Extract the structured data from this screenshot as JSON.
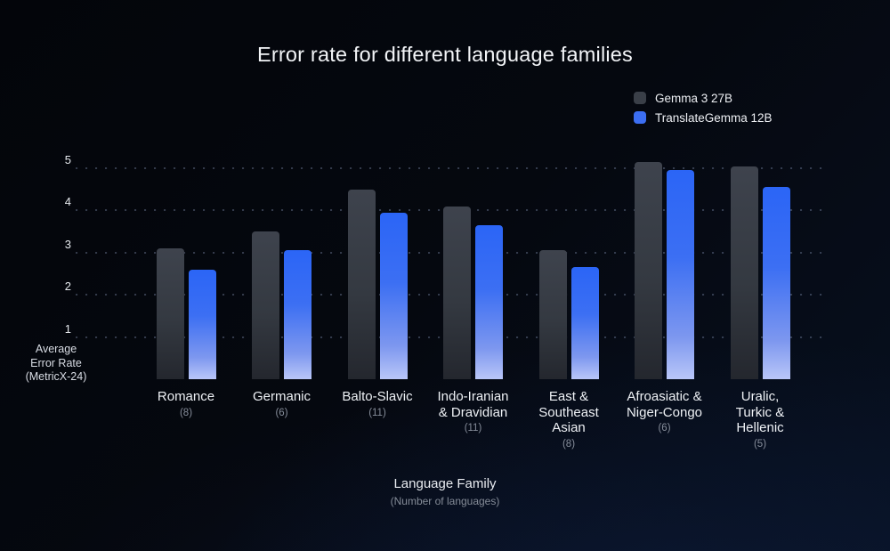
{
  "title": "Error rate for different language families",
  "chart_data": {
    "type": "bar",
    "title": "Error rate for different language families",
    "xlabel": "Language Family",
    "xlabel_sub": "(Number of languages)",
    "ylabel_lines": [
      "Average",
      "Error Rate",
      "(MetricX-24)"
    ],
    "yticks": [
      1,
      2,
      3,
      4,
      5
    ],
    "ylim": [
      0,
      5.5
    ],
    "grid": "dotted-horizontal",
    "legend_position": "top-right",
    "categories": [
      {
        "lines": [
          "Romance"
        ],
        "count": "(8)"
      },
      {
        "lines": [
          "Germanic"
        ],
        "count": "(6)"
      },
      {
        "lines": [
          "Balto-Slavic"
        ],
        "count": "(11)"
      },
      {
        "lines": [
          "Indo-Iranian",
          "& Dravidian"
        ],
        "count": "(11)"
      },
      {
        "lines": [
          "East &",
          "Southeast",
          "Asian"
        ],
        "count": "(8)"
      },
      {
        "lines": [
          "Afroasiatic &",
          "Niger-Congo"
        ],
        "count": "(6)"
      },
      {
        "lines": [
          "Uralic,",
          "Turkic &",
          "Hellenic"
        ],
        "count": "(5)"
      }
    ],
    "series": [
      {
        "name": "Gemma 3 27B",
        "color": "#3a3f48",
        "values": [
          3.1,
          3.5,
          4.5,
          4.1,
          3.05,
          5.15,
          5.05
        ]
      },
      {
        "name": "TranslateGemma 12B",
        "color": "#3c6ef2",
        "values": [
          2.6,
          3.05,
          3.95,
          3.65,
          2.65,
          4.95,
          4.55
        ]
      }
    ]
  }
}
